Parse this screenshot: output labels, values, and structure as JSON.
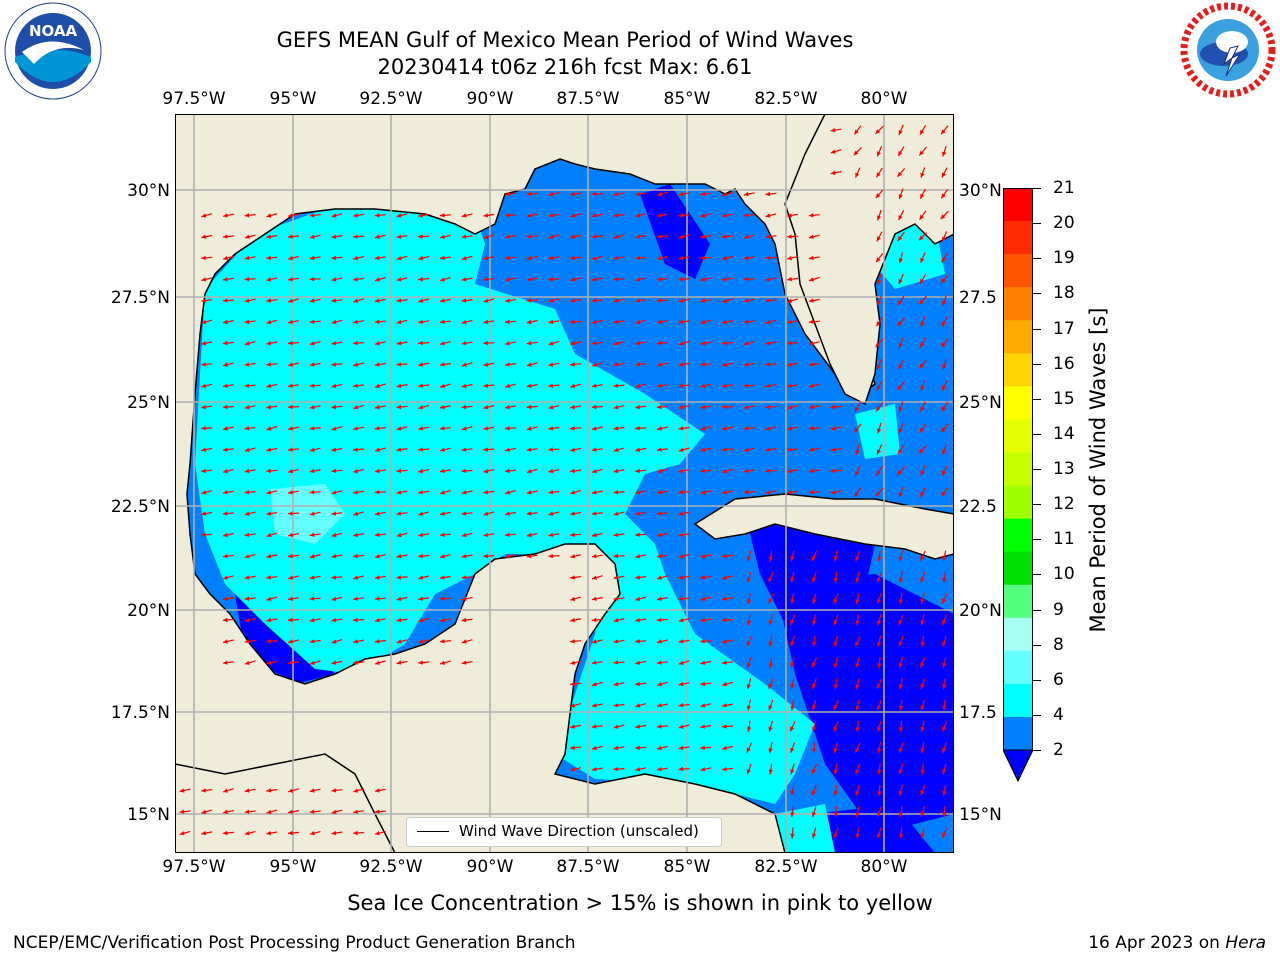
{
  "title": {
    "line1": "GEFS MEAN Gulf of Mexico Mean Period of Wind Waves",
    "line2": "20230414 t06z 216h fcst   Max: 6.61"
  },
  "axes": {
    "lon_labels": [
      "97.5°W",
      "95°W",
      "92.5°W",
      "90°W",
      "87.5°W",
      "85°W",
      "82.5°W",
      "80°W"
    ],
    "lat_labels_left": [
      "30°N",
      "27.5°N",
      "25°N",
      "22.5°N",
      "20°N",
      "17.5°N",
      "15°N"
    ],
    "lat_labels_right": [
      "30°N",
      "27.5",
      "25°N",
      "22.5",
      "20°N",
      "17.5",
      "15°N"
    ]
  },
  "colorbar": {
    "label": "Mean Period of Wind Waves [s]",
    "ticks": [
      "21",
      "20",
      "19",
      "18",
      "17",
      "16",
      "15",
      "14",
      "13",
      "12",
      "11",
      "10",
      "9",
      "8",
      "6",
      "4",
      "2"
    ],
    "colors": [
      "#ff0000",
      "#ff2a00",
      "#ff5500",
      "#ff8000",
      "#ffaa00",
      "#ffd400",
      "#ffff00",
      "#e6ff00",
      "#c8ff00",
      "#a0ff00",
      "#00ff00",
      "#00dd00",
      "#55ff7f",
      "#a6fff2",
      "#66ffff",
      "#00ffff",
      "#0080ff"
    ],
    "under_color": "#0000ff"
  },
  "legend": {
    "label": "Wind Wave Direction (unscaled)"
  },
  "note": "Sea Ice Concentration > 15% is shown in pink to yellow",
  "footer": {
    "left": "NCEP/EMC/Verification Post Processing Product Generation Branch",
    "right_prefix": "16 Apr 2023 on ",
    "right_host": "Hera"
  },
  "logos": {
    "noaa_text": "NOAA",
    "noaa_ring": "NATIONAL OCEANIC AND ATMOSPHERIC ADMINISTRATION · U.S. DEPARTMENT OF COMMERCE",
    "nws_ring": "NATIONAL WEATHER SERVICE"
  },
  "map_colors": {
    "land": "#efedd9",
    "deep": "#0080ff",
    "cyan": "#00ffff",
    "pale": "#66ffff",
    "under": "#0000ff",
    "arrow": "#ff0000",
    "grid": "#b0b0b0"
  }
}
